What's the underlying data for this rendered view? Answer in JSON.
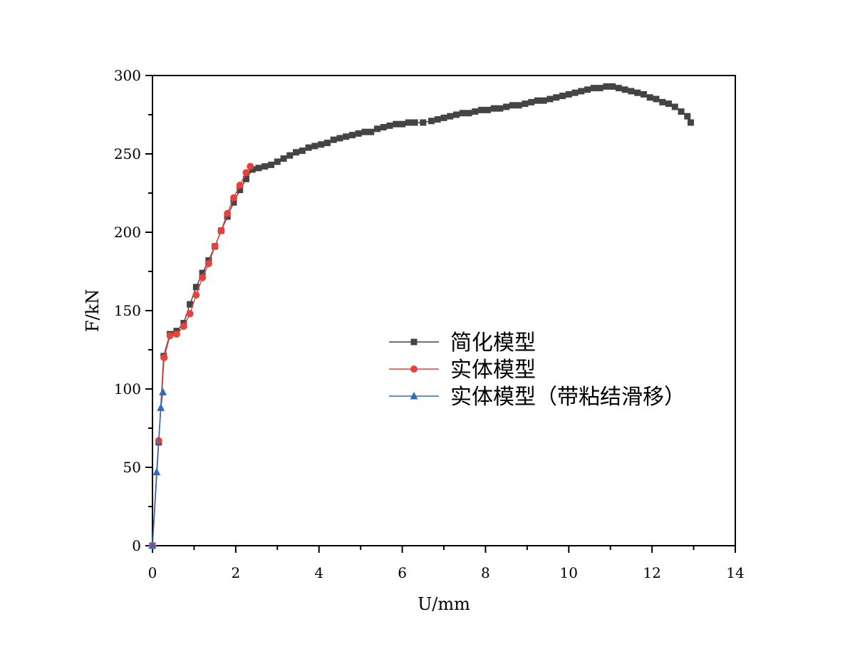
{
  "chart_data": {
    "type": "line",
    "xlabel": "U/mm",
    "ylabel": "F/kN",
    "xlim": [
      0,
      14
    ],
    "ylim": [
      0,
      300
    ],
    "xticks": [
      0,
      2,
      4,
      6,
      8,
      10,
      12,
      14
    ],
    "yticks": [
      0,
      50,
      100,
      150,
      200,
      250,
      300
    ],
    "legend_position": "center-right",
    "grid": false,
    "series": [
      {
        "name": "简化模型",
        "color": "#444444",
        "marker": "square",
        "points": [
          [
            0,
            0
          ],
          [
            0.15,
            66
          ],
          [
            0.27,
            121
          ],
          [
            0.42,
            135
          ],
          [
            0.58,
            137
          ],
          [
            0.75,
            142
          ],
          [
            0.9,
            154
          ],
          [
            1.05,
            165
          ],
          [
            1.2,
            174
          ],
          [
            1.35,
            182
          ],
          [
            1.5,
            191
          ],
          [
            1.65,
            201
          ],
          [
            1.8,
            210
          ],
          [
            1.95,
            219
          ],
          [
            2.1,
            227
          ],
          [
            2.25,
            234
          ],
          [
            2.4,
            240
          ],
          [
            2.55,
            241
          ],
          [
            2.7,
            242
          ],
          [
            2.85,
            243
          ],
          [
            3.0,
            245
          ],
          [
            3.15,
            247
          ],
          [
            3.3,
            249
          ],
          [
            3.45,
            251
          ],
          [
            3.6,
            252
          ],
          [
            3.75,
            254
          ],
          [
            3.9,
            255
          ],
          [
            4.05,
            256
          ],
          [
            4.2,
            257
          ],
          [
            4.35,
            259
          ],
          [
            4.5,
            260
          ],
          [
            4.65,
            261
          ],
          [
            4.8,
            262
          ],
          [
            4.95,
            263
          ],
          [
            5.1,
            264
          ],
          [
            5.25,
            264
          ],
          [
            5.4,
            266
          ],
          [
            5.55,
            267
          ],
          [
            5.7,
            268
          ],
          [
            5.85,
            269
          ],
          [
            6.0,
            269
          ],
          [
            6.15,
            270
          ],
          [
            6.3,
            270
          ],
          [
            6.5,
            270
          ],
          [
            6.7,
            271
          ],
          [
            6.85,
            272
          ],
          [
            7.0,
            273
          ],
          [
            7.15,
            274
          ],
          [
            7.3,
            275
          ],
          [
            7.45,
            276
          ],
          [
            7.6,
            276
          ],
          [
            7.75,
            277
          ],
          [
            7.9,
            278
          ],
          [
            8.05,
            278
          ],
          [
            8.2,
            279
          ],
          [
            8.35,
            279
          ],
          [
            8.5,
            280
          ],
          [
            8.65,
            281
          ],
          [
            8.8,
            281
          ],
          [
            8.95,
            282
          ],
          [
            9.1,
            283
          ],
          [
            9.25,
            284
          ],
          [
            9.4,
            284
          ],
          [
            9.55,
            285
          ],
          [
            9.7,
            286
          ],
          [
            9.85,
            287
          ],
          [
            10.0,
            288
          ],
          [
            10.15,
            289
          ],
          [
            10.3,
            290
          ],
          [
            10.45,
            291
          ],
          [
            10.6,
            292
          ],
          [
            10.75,
            292
          ],
          [
            10.9,
            293
          ],
          [
            11.05,
            293
          ],
          [
            11.2,
            292
          ],
          [
            11.35,
            291
          ],
          [
            11.5,
            290
          ],
          [
            11.65,
            289
          ],
          [
            11.8,
            288
          ],
          [
            11.95,
            286
          ],
          [
            12.1,
            285
          ],
          [
            12.25,
            283
          ],
          [
            12.4,
            282
          ],
          [
            12.55,
            280
          ],
          [
            12.7,
            277
          ],
          [
            12.85,
            274
          ],
          [
            12.93,
            270
          ]
        ]
      },
      {
        "name": "实体模型",
        "color": "#e8413a",
        "marker": "circle",
        "points": [
          [
            0,
            0
          ],
          [
            0.15,
            67
          ],
          [
            0.28,
            120
          ],
          [
            0.42,
            134
          ],
          [
            0.58,
            135
          ],
          [
            0.75,
            140
          ],
          [
            0.9,
            148
          ],
          [
            1.05,
            160
          ],
          [
            1.2,
            171
          ],
          [
            1.35,
            180
          ],
          [
            1.5,
            191
          ],
          [
            1.65,
            201
          ],
          [
            1.8,
            212
          ],
          [
            1.95,
            222
          ],
          [
            2.1,
            230
          ],
          [
            2.25,
            238
          ],
          [
            2.35,
            242
          ]
        ]
      },
      {
        "name": "实体模型（带粘结滑移）",
        "color": "#2e6bbf",
        "marker": "triangle",
        "points": [
          [
            0,
            0
          ],
          [
            0.1,
            47
          ],
          [
            0.2,
            88
          ],
          [
            0.25,
            98
          ]
        ]
      }
    ]
  }
}
